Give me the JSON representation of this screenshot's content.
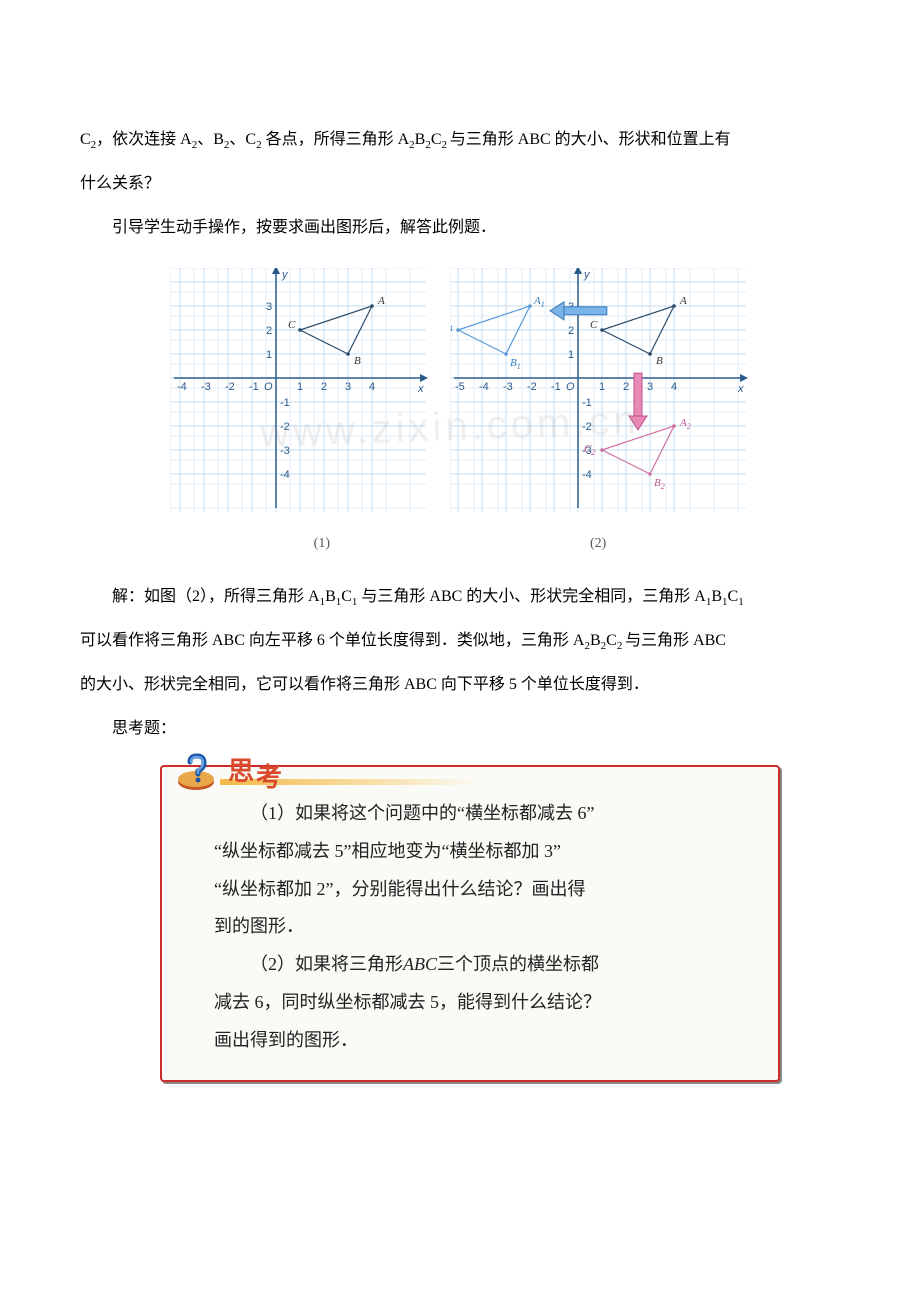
{
  "text": {
    "p1a": "C",
    "p1b": "₂，依次连接 A",
    "p1c": "₂、B",
    "p1d": "₂、C",
    "p1e": "₂各点，所得三角形 A",
    "p1f": "₂B",
    "p1g": "₂C",
    "p1h": "₂与三角形 ABC 的大小、形状和位置上有",
    "p2": "什么关系？",
    "p3": "引导学生动手操作，按要求画出图形后，解答此例题．",
    "fig1_label": "(1)",
    "fig2_label": "(2)",
    "p4a": "解：如图（2），所得三角形 A",
    "p4b": "₁B",
    "p4c": "₁C",
    "p4d": "₁与三角形 ABC 的大小、形状完全相同，三角形 A",
    "p4e": "₁B",
    "p4f": "₁C",
    "p4g": "₁",
    "p5a": "可以看作将三角形 ABC 向左平移 6 个单位长度得到．类似地，三角形 A",
    "p5b": "₂B",
    "p5c": "₂C",
    "p5d": "₂与三角形 ABC",
    "p6": "的大小、形状完全相同，它可以看作将三角形 ABC 向下平移 5 个单位长度得到．",
    "p7": "思考题：",
    "think_title_1": "思",
    "think_title_2": "考",
    "think_q1_l1": "（1）如果将这个问题中的“横坐标都减去 6”",
    "think_q1_l2": "“纵坐标都减去 5”相应地变为“横坐标都加 3”",
    "think_q1_l3": "“纵坐标都加 2”，分别能得出什么结论？画出得",
    "think_q1_l4": "到的图形．",
    "think_q2_l1a": "（2）如果将三角形",
    "think_q2_l1b": "ABC",
    "think_q2_l1c": "三个顶点的横坐标都",
    "think_q2_l2": "减去 6，同时纵坐标都减去 5，能得到什么结论？",
    "think_q2_l3": "画出得到的图形．",
    "watermark": "www.zixin.com.cn"
  },
  "chart": {
    "cell": 24,
    "colors": {
      "grid": "#c4dcf0",
      "grid_light": "#e2eef8",
      "axis": "#2a5a8a",
      "tri_black": "#2a4a6a",
      "tri_blue": "#5a9ad8",
      "tri_red": "#d070a0",
      "arrow_blue_fill": "#7ab4e8",
      "arrow_blue_stroke": "#3a7ab8",
      "arrow_red_fill": "#e88ab4",
      "arrow_red_stroke": "#c05090"
    },
    "fig1": {
      "x_range": [
        -4,
        4
      ],
      "y_range": [
        -4,
        4
      ],
      "x_ticks": [
        -4,
        -3,
        -2,
        -1,
        1,
        2,
        3,
        4
      ],
      "y_ticks_pos": [
        1,
        2,
        3
      ],
      "y_ticks_neg": [
        -1,
        -2,
        -3,
        -4
      ],
      "origin_label": "O",
      "x_label": "x",
      "y_label": "y",
      "triangle": {
        "A": [
          4,
          3
        ],
        "B": [
          3,
          1
        ],
        "C": [
          1,
          2
        ]
      }
    },
    "fig2": {
      "x_range": [
        -5,
        4
      ],
      "y_range": [
        -4,
        4
      ],
      "x_ticks": [
        -5,
        -4,
        -3,
        -2,
        -1,
        1,
        2,
        3,
        4
      ],
      "y_ticks_pos": [
        1,
        2,
        3
      ],
      "y_ticks_neg": [
        -1,
        -2,
        -3,
        -4
      ],
      "origin_label": "O",
      "x_label": "x",
      "y_label": "y",
      "triangle_abc": {
        "A": [
          4,
          3
        ],
        "B": [
          3,
          1
        ],
        "C": [
          1,
          2
        ]
      },
      "triangle_a1": {
        "A1": [
          -2,
          3
        ],
        "B1": [
          -3,
          1
        ],
        "C1": [
          -5,
          2
        ]
      },
      "triangle_a2": {
        "A2": [
          4,
          -2
        ],
        "B2": [
          3,
          -4
        ],
        "C2": [
          1,
          -3
        ]
      },
      "arrow_blue": {
        "from": [
          1.2,
          2.8
        ],
        "to": [
          -1.0,
          2.8
        ]
      },
      "arrow_red": {
        "from": [
          2.5,
          0.2
        ],
        "to": [
          2.5,
          -2.0
        ]
      }
    }
  }
}
